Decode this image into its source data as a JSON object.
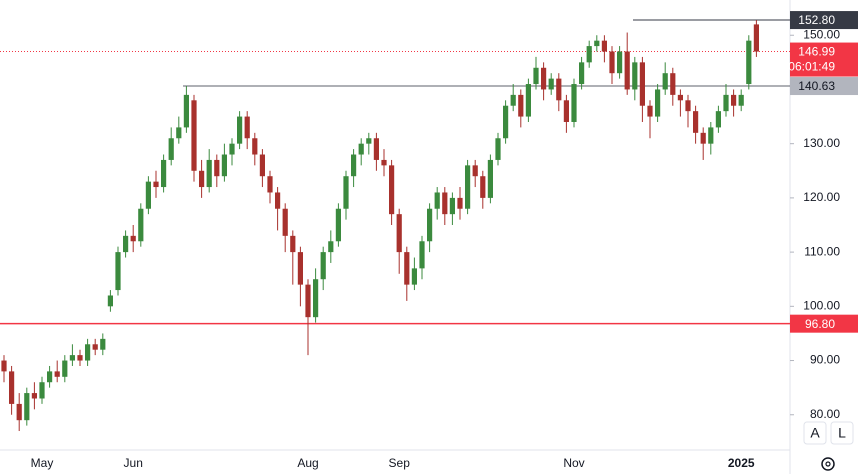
{
  "chart_data": {
    "type": "candlestick",
    "categories": [
      null,
      null,
      null,
      null,
      null,
      "May",
      null,
      null,
      null,
      null,
      null,
      null,
      null,
      null,
      null,
      null,
      null,
      "Jun",
      null,
      null,
      null,
      null,
      null,
      null,
      null,
      null,
      null,
      null,
      null,
      null,
      null,
      null,
      null,
      null,
      null,
      null,
      null,
      null,
      null,
      null,
      "Aug",
      null,
      null,
      null,
      null,
      null,
      null,
      null,
      null,
      null,
      null,
      null,
      "Sep",
      null,
      null,
      null,
      null,
      null,
      null,
      null,
      null,
      null,
      null,
      null,
      null,
      null,
      null,
      null,
      null,
      null,
      null,
      null,
      null,
      null,
      null,
      "Nov",
      null,
      null,
      null,
      null,
      null,
      null,
      null,
      null,
      null,
      null,
      null,
      null,
      null,
      null,
      null,
      null,
      null,
      null,
      null,
      null,
      null,
      "2025",
      null,
      null
    ],
    "open": [
      90,
      88,
      82,
      79,
      84,
      83,
      86,
      88,
      87,
      90,
      91,
      90,
      93,
      92,
      100,
      103,
      110,
      113,
      112,
      118,
      123,
      122,
      127,
      131,
      133,
      138,
      125,
      122,
      127,
      124,
      128,
      130,
      135,
      131,
      128,
      124,
      121,
      118,
      113,
      110,
      104,
      98,
      105,
      110,
      112,
      118,
      124,
      128,
      130,
      131,
      127,
      126,
      117,
      110,
      104,
      107,
      112,
      118,
      121,
      117,
      120,
      118,
      126,
      124,
      120,
      127,
      131,
      137,
      139,
      135,
      141,
      144,
      140,
      142,
      138,
      134,
      141,
      145,
      148,
      149,
      147,
      143,
      147,
      140,
      145,
      137,
      135,
      140,
      143,
      139,
      138,
      136,
      132,
      130,
      133,
      136,
      139,
      137,
      141,
      152
    ],
    "high": [
      91,
      89,
      84,
      85,
      86,
      87,
      89,
      90,
      91,
      93,
      92,
      94,
      94,
      95,
      103,
      111,
      114,
      115,
      119,
      124,
      125,
      128,
      133,
      135,
      140.63,
      139,
      127,
      129,
      128,
      130,
      131,
      136,
      136,
      132,
      129,
      125,
      122,
      119,
      114,
      111,
      105,
      107,
      111,
      114,
      119,
      125,
      129,
      131,
      132,
      132,
      129,
      127,
      118,
      111,
      109,
      113,
      119,
      122,
      122,
      121,
      122,
      127,
      127,
      125,
      128,
      132,
      138,
      141,
      140,
      142,
      146,
      145,
      143,
      143,
      139,
      142,
      146,
      149,
      150,
      150,
      148,
      148,
      150.5,
      146,
      146,
      138,
      141,
      145,
      144,
      140,
      139,
      137,
      133,
      134,
      137,
      141,
      140,
      140,
      150,
      152.8
    ],
    "low": [
      86,
      80,
      77,
      78,
      81,
      82,
      85,
      86,
      86,
      89,
      89,
      89,
      91,
      91,
      99,
      102,
      109,
      110,
      111,
      117,
      120,
      121,
      126,
      130,
      132,
      123,
      120,
      121,
      122,
      123,
      126,
      129,
      129,
      126,
      122,
      119,
      114,
      110,
      104,
      100,
      91,
      97,
      103,
      108,
      111,
      116,
      122,
      126,
      128,
      125,
      124,
      115,
      106,
      101,
      103,
      105,
      110,
      116,
      115,
      115,
      116,
      117,
      122,
      118,
      119,
      126,
      130,
      136,
      133,
      134,
      140,
      138,
      139,
      136,
      132,
      133,
      140,
      144,
      147,
      145,
      141,
      142,
      139,
      138,
      134,
      131,
      134,
      139,
      137,
      135,
      133,
      130,
      127,
      128,
      132,
      135,
      135,
      136,
      140,
      146
    ],
    "close": [
      88,
      82,
      79,
      84,
      83,
      86,
      88,
      87,
      90,
      91,
      90,
      93,
      92,
      94,
      102,
      110,
      113,
      112,
      118,
      123,
      122,
      127,
      131,
      133,
      139,
      125,
      122,
      127,
      124,
      128,
      130,
      135,
      131,
      128,
      124,
      121,
      118,
      113,
      110,
      104,
      98,
      105,
      110,
      112,
      118,
      124,
      128,
      130,
      131,
      127,
      126,
      117,
      110,
      104,
      107,
      112,
      118,
      121,
      117,
      120,
      118,
      126,
      124,
      120,
      127,
      131,
      137,
      139,
      135,
      141,
      144,
      140,
      142,
      138,
      134,
      141,
      145,
      148,
      149,
      147,
      143,
      147,
      140,
      145,
      137,
      135,
      140,
      143,
      139,
      138,
      136,
      132,
      130,
      133,
      136,
      139,
      137,
      139,
      149,
      146.99
    ],
    "up_color": "#3b8a3e",
    "down_color": "#a8312d",
    "ylim": [
      73.5,
      156.5
    ],
    "yticks": [
      {
        "value": 80,
        "label": "80.00"
      },
      {
        "value": 90,
        "label": "90.00"
      },
      {
        "value": 100,
        "label": "100.00"
      },
      {
        "value": 110,
        "label": "110.00"
      },
      {
        "value": 120,
        "label": "120.00"
      },
      {
        "value": 130,
        "label": "130.00"
      },
      {
        "value": 150,
        "label": "150.00"
      }
    ],
    "levels": [
      {
        "value": 152.8,
        "label": "152.80",
        "color": "#363a45"
      },
      {
        "value": 140.63,
        "label": "140.63",
        "color": "#5d606b"
      },
      {
        "value": 96.8,
        "label": "96.80",
        "color": "#f23645"
      }
    ],
    "last_price": {
      "value": 146.99,
      "label": "146.99",
      "countdown": "06:01:49",
      "color": "#f23645"
    },
    "buttons": [
      "A",
      "L"
    ]
  }
}
